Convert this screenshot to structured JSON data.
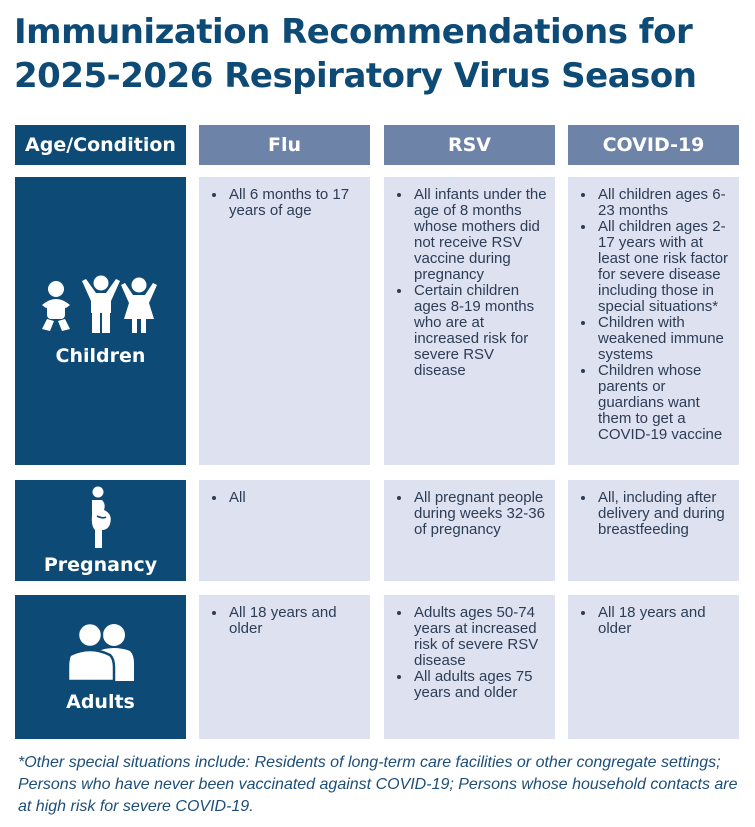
{
  "title": "Immunization Recommendations for 2025-2026 Respiratory Virus Season",
  "headers": {
    "condition": "Age/Condition",
    "flu": "Flu",
    "rsv": "RSV",
    "covid": "COVID-19"
  },
  "rows": {
    "children": {
      "label": "Children",
      "icon": "children-icon",
      "flu": [
        "All 6 months to 17 years of age"
      ],
      "rsv": [
        "All infants under the age of 8 months whose mothers did not receive RSV vaccine during pregnancy",
        "Certain children ages 8-19 months who are at increased risk for severe RSV disease"
      ],
      "covid": [
        "All children ages 6-23 months",
        "All children ages 2-17 years with at least one risk factor for severe disease including those in special situations*",
        "Children with weakened immune systems",
        "Children whose parents or guardians want them to get a COVID-19 vaccine"
      ]
    },
    "pregnancy": {
      "label": "Pregnancy",
      "icon": "pregnant-person-icon",
      "flu": [
        "All"
      ],
      "rsv": [
        "All pregnant people during weeks 32-36 of pregnancy"
      ],
      "covid": [
        "All, including after delivery and during breastfeeding"
      ]
    },
    "adults": {
      "label": "Adults",
      "icon": "adults-icon",
      "flu": [
        "All 18 years and older"
      ],
      "rsv": [
        "Adults ages 50-74 years at increased risk of severe RSV disease",
        "All adults ages 75 years and older"
      ],
      "covid": [
        "All 18 years and older"
      ]
    }
  },
  "footnote": "*Other special situations include: Residents of long-term care facilities or other congregate settings; Persons who have never been vaccinated against COVID-19; Persons whose household contacts are at high risk for severe COVID-19.",
  "colors": {
    "navy": "#0d4a75",
    "header_blue": "#6e83a8",
    "cell_bg": "#dee1ef"
  }
}
